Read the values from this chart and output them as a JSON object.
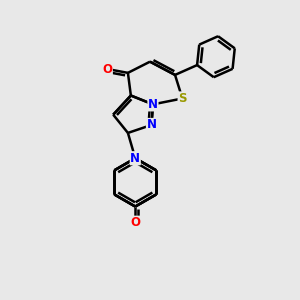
{
  "background_color": "#e8e8e8",
  "bond_color": "#000000",
  "bond_width": 1.8,
  "atom_colors": {
    "N": "#0000ff",
    "O": "#ff0000",
    "S": "#999900",
    "C": "#000000"
  },
  "font_size": 8.5,
  "figsize": [
    3.0,
    3.0
  ],
  "dpi": 100
}
